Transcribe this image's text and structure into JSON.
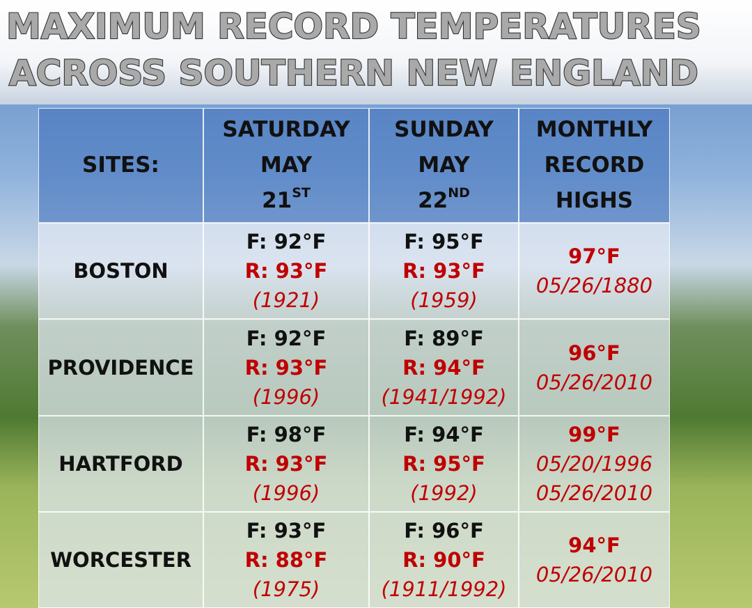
{
  "title": {
    "lines": [
      "MAXIMUM RECORD TEMPERATURES",
      "ACROSS SOUTHERN NEW ENGLAND"
    ]
  },
  "table": {
    "header": [
      {
        "lines": [
          "SITES:"
        ]
      },
      {
        "lines": [
          "SATURDAY",
          "MAY"
        ],
        "day": "21",
        "suffix": "ST"
      },
      {
        "lines": [
          "SUNDAY",
          "MAY"
        ],
        "day": "22",
        "suffix": "ND"
      },
      {
        "lines": [
          "MONTHLY",
          "RECORD",
          "HIGHS"
        ]
      }
    ],
    "rows": [
      {
        "site": "BOSTON",
        "saturday": {
          "forecast": "F: 92°F",
          "record": "R: 93°F",
          "year": "(1921)"
        },
        "sunday": {
          "forecast": "F: 95°F",
          "record": "R: 93°F",
          "year": "(1959)"
        },
        "monthly": {
          "record": "97°F",
          "dates": [
            "05/26/1880"
          ]
        }
      },
      {
        "site": "PROVIDENCE",
        "saturday": {
          "forecast": "F: 92°F",
          "record": "R: 93°F",
          "year": "(1996)"
        },
        "sunday": {
          "forecast": "F: 89°F",
          "record": "R: 94°F",
          "year": "(1941/1992)"
        },
        "monthly": {
          "record": "96°F",
          "dates": [
            "05/26/2010"
          ]
        }
      },
      {
        "site": "HARTFORD",
        "saturday": {
          "forecast": "F: 98°F",
          "record": "R: 93°F",
          "year": "(1996)"
        },
        "sunday": {
          "forecast": "F: 94°F",
          "record": "R: 95°F",
          "year": "(1992)"
        },
        "monthly": {
          "record": "99°F",
          "dates": [
            "05/20/1996",
            "05/26/2010"
          ]
        }
      },
      {
        "site": "WORCESTER",
        "saturday": {
          "forecast": "F: 93°F",
          "record": "R: 88°F",
          "year": "(1975)"
        },
        "sunday": {
          "forecast": "F: 96°F",
          "record": "R: 90°F",
          "year": "(1911/1992)"
        },
        "monthly": {
          "record": "94°F",
          "dates": [
            "05/26/2010"
          ]
        }
      }
    ]
  }
}
